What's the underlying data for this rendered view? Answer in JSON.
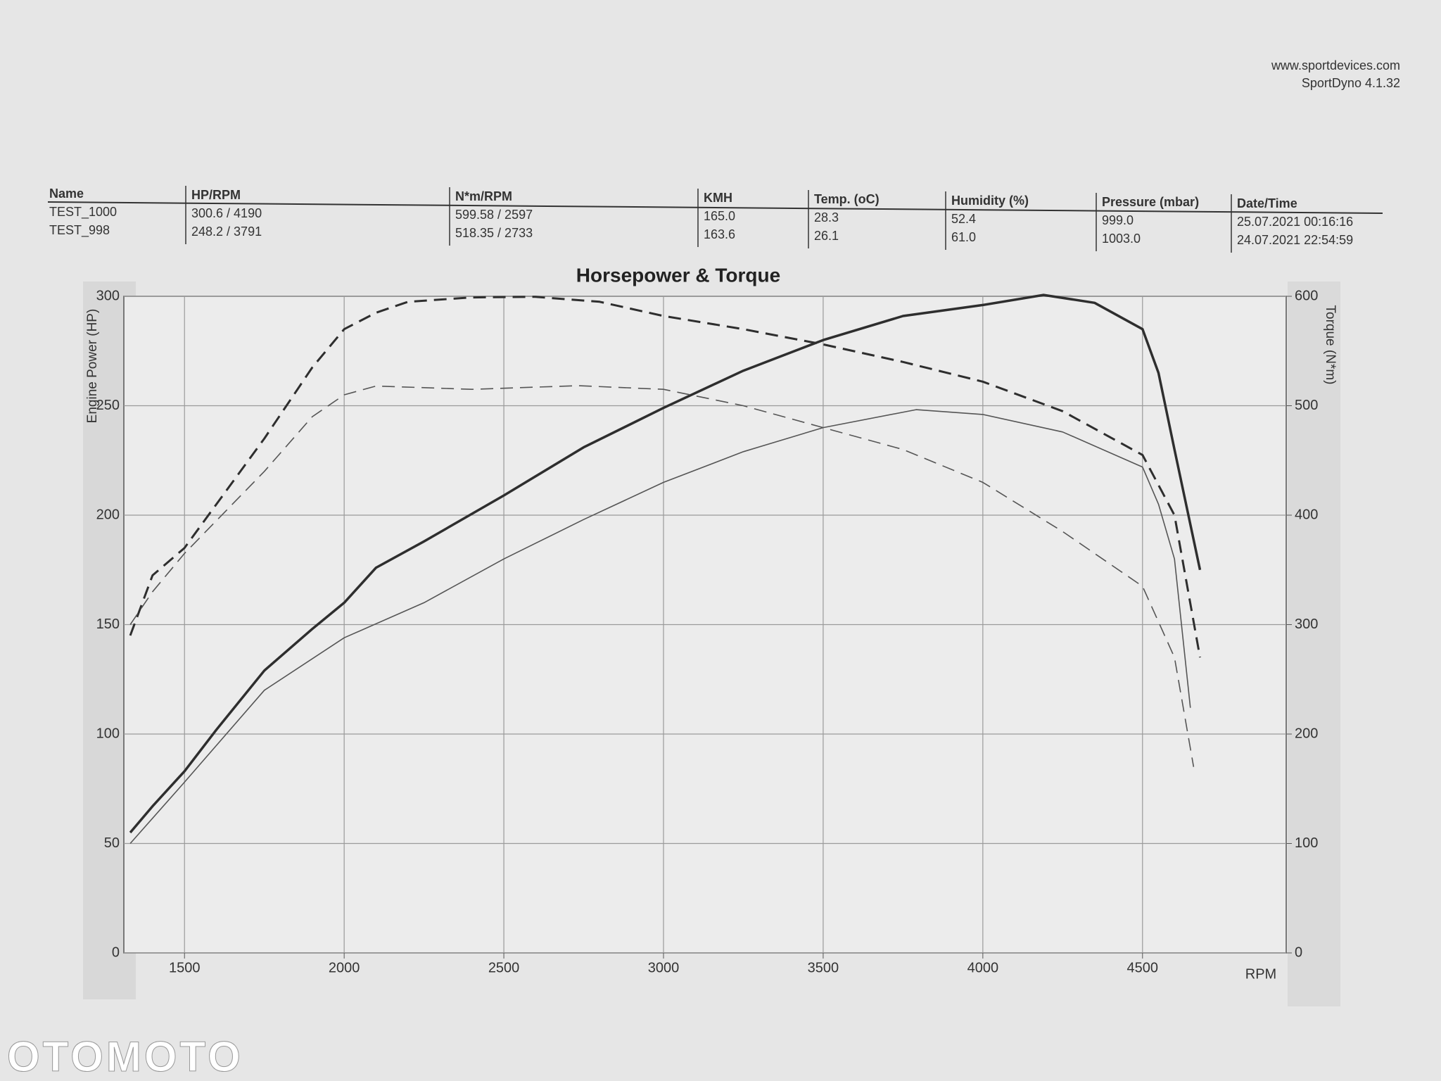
{
  "header": {
    "website": "www.sportdevices.com",
    "software": "SportDyno 4.1.32"
  },
  "table": {
    "headers": [
      "Name",
      "HP/RPM",
      "N*m/RPM",
      "KMH",
      "Temp. (oC)",
      "Humidity (%)",
      "Pressure (mbar)",
      "Date/Time"
    ],
    "rows": [
      [
        "TEST_1000",
        "300.6 / 4190",
        "599.58 / 2597",
        "165.0",
        "28.3",
        "52.4",
        "999.0",
        "25.07.2021 00:16:16"
      ],
      [
        "TEST_998",
        "248.2 / 3791",
        "518.35 / 2733",
        "163.6",
        "26.1",
        "61.0",
        "1003.0",
        "24.07.2021 22:54:59"
      ]
    ]
  },
  "chart_data": {
    "type": "line",
    "title": "Horsepower & Torque",
    "x_label": "RPM",
    "y_label": "Engine Power (HP)",
    "y2_label": "Torque (N*m)",
    "xlim": [
      1310,
      4950
    ],
    "xticks": [
      1500,
      2000,
      2500,
      3000,
      3500,
      4000,
      4500
    ],
    "ylim": [
      0,
      300
    ],
    "yticks": [
      0,
      50,
      100,
      150,
      200,
      250,
      300
    ],
    "y2lim": [
      0,
      600
    ],
    "y2ticks": [
      0,
      100,
      200,
      300,
      400,
      500,
      600
    ],
    "grid": true,
    "series": [
      {
        "color": "#2e2e2e",
        "style": "solid",
        "x": [
          1330,
          1400,
          1500,
          1600,
          1750,
          1900,
          2000,
          2100,
          2250,
          2500,
          2750,
          3000,
          3250,
          3500,
          3750,
          4000,
          4190,
          4350,
          4500,
          4550,
          4600,
          4680
        ],
        "values": [
          55,
          67,
          83,
          102,
          129,
          148,
          160,
          176,
          188,
          209,
          231,
          249,
          266,
          280,
          291,
          296,
          300.6,
          297,
          285,
          265,
          230,
          175
        ]
      },
      {
        "color": "#555555",
        "style": "solid",
        "x": [
          1330,
          1500,
          1750,
          2000,
          2250,
          2500,
          2750,
          3000,
          3250,
          3500,
          3791,
          4000,
          4250,
          4500,
          4550,
          4600,
          4650
        ],
        "values": [
          50,
          78,
          120,
          144,
          160,
          180,
          198,
          215,
          229,
          240,
          248.2,
          246,
          238,
          222,
          205,
          180,
          112
        ]
      },
      {
        "color": "#2e2e2e",
        "style": "dashed",
        "axis": "y2",
        "x": [
          1330,
          1400,
          1500,
          1750,
          1900,
          2000,
          2100,
          2200,
          2400,
          2597,
          2800,
          3000,
          3250,
          3500,
          3750,
          4000,
          4250,
          4500,
          4600,
          4680
        ],
        "values": [
          290,
          345,
          370,
          470,
          535,
          570,
          585,
          595,
          599,
          599.58,
          595,
          582,
          570,
          556,
          540,
          522,
          495,
          455,
          400,
          270
        ]
      },
      {
        "color": "#555555",
        "style": "dashed",
        "axis": "y2",
        "x": [
          1330,
          1400,
          1500,
          1750,
          1900,
          2000,
          2100,
          2400,
          2733,
          3000,
          3250,
          3500,
          3750,
          4000,
          4250,
          4500,
          4600,
          4660
        ],
        "values": [
          300,
          330,
          365,
          440,
          490,
          510,
          518,
          515,
          518.35,
          515,
          500,
          480,
          460,
          430,
          385,
          335,
          270,
          170
        ]
      }
    ]
  },
  "watermark": "OTOMOTO"
}
